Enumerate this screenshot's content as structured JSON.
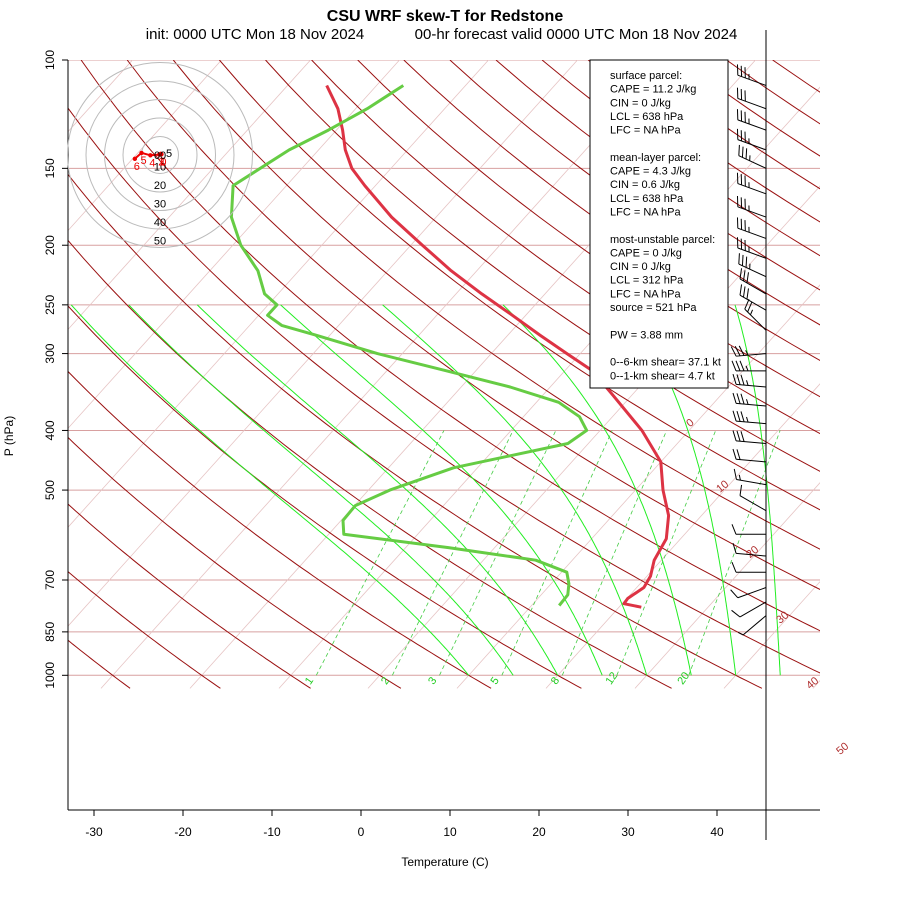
{
  "title": "CSU WRF skew-T for Redstone",
  "subtitle_init": "init: 0000 UTC Mon 18 Nov 2024",
  "subtitle_valid": "00-hr forecast valid 0000 UTC Mon 18 Nov 2024",
  "chart_data": {
    "type": "line",
    "title": "CSU WRF skew-T for Redstone",
    "xlabel": "Temperature (C)",
    "ylabel": "P (hPa)",
    "xlim": [
      -33,
      47
    ],
    "ylim": [
      1050,
      100
    ],
    "y_scale": "log",
    "x_ticks": [
      -30,
      -20,
      -10,
      0,
      10,
      20,
      30,
      40
    ],
    "x_tick_labels": [
      "-30",
      "-20",
      "-10",
      "0",
      "10",
      "20",
      "30",
      "40"
    ],
    "y_ticks": [
      100,
      150,
      200,
      250,
      300,
      400,
      500,
      700,
      850,
      1000
    ],
    "y_tick_labels": [
      "100",
      "150",
      "200",
      "250",
      "300",
      "400",
      "500",
      "700",
      "850",
      "1000"
    ],
    "isotherm_labels": [
      {
        "t": 0,
        "text": "0"
      },
      {
        "t": 10,
        "text": "10"
      },
      {
        "t": 20,
        "text": "20"
      },
      {
        "t": 30,
        "text": "30"
      },
      {
        "t": 40,
        "text": "40"
      },
      {
        "t": 50,
        "text": "50"
      }
    ],
    "mixing_ratio_labels": [
      "1",
      "2",
      "3",
      "5",
      "8",
      "12",
      "20"
    ],
    "series": [
      {
        "name": "Temperature",
        "color": "#dd3344",
        "p": [
          775,
          765,
          750,
          720,
          690,
          650,
          600,
          550,
          500,
          450,
          400,
          350,
          320,
          300,
          280,
          260,
          240,
          220,
          200,
          180,
          160,
          150,
          140,
          130,
          120,
          110
        ],
        "t": [
          12.5,
          10.2,
          10.1,
          10.8,
          10.4,
          9.2,
          8.4,
          6.3,
          3.1,
          0.0,
          -5.3,
          -12.2,
          -16.9,
          -21.5,
          -26.4,
          -31.5,
          -37.1,
          -42.9,
          -48.7,
          -55.0,
          -61.2,
          -64.4,
          -67.0,
          -69.3,
          -72.0,
          -75.6
        ]
      },
      {
        "name": "Dewpoint",
        "color": "#66cc44",
        "p": [
          770,
          740,
          710,
          680,
          650,
          620,
          590,
          560,
          530,
          500,
          460,
          420,
          400,
          380,
          360,
          340,
          320,
          300,
          280,
          270,
          260,
          250,
          240,
          220,
          200,
          180,
          160,
          140,
          130,
          120,
          110
        ],
        "t": [
          3.1,
          3.0,
          2.0,
          0.6,
          -4.1,
          -15.2,
          -28.3,
          -29.8,
          -29.9,
          -27.6,
          -22.7,
          -12.3,
          -11.5,
          -13.7,
          -17.5,
          -24.5,
          -33.3,
          -42.8,
          -51.6,
          -56.4,
          -59.0,
          -59.0,
          -61.5,
          -64.6,
          -69.1,
          -73.0,
          -76.0,
          -73.3,
          -70.9,
          -68.7,
          -67.0
        ]
      }
    ],
    "wind_barbs": [
      {
        "p": 110,
        "spd": 35,
        "dir": 290
      },
      {
        "p": 120,
        "spd": 30,
        "dir": 290
      },
      {
        "p": 130,
        "spd": 35,
        "dir": 290
      },
      {
        "p": 140,
        "spd": 35,
        "dir": 290
      },
      {
        "p": 150,
        "spd": 35,
        "dir": 295
      },
      {
        "p": 165,
        "spd": 35,
        "dir": 290
      },
      {
        "p": 180,
        "spd": 35,
        "dir": 290
      },
      {
        "p": 195,
        "spd": 35,
        "dir": 290
      },
      {
        "p": 210,
        "spd": 35,
        "dir": 290
      },
      {
        "p": 225,
        "spd": 35,
        "dir": 295
      },
      {
        "p": 240,
        "spd": 30,
        "dir": 300
      },
      {
        "p": 255,
        "spd": 30,
        "dir": 300
      },
      {
        "p": 275,
        "spd": 25,
        "dir": 315
      },
      {
        "p": 300,
        "spd": 35,
        "dir": 265
      },
      {
        "p": 320,
        "spd": 35,
        "dir": 270
      },
      {
        "p": 340,
        "spd": 35,
        "dir": 275
      },
      {
        "p": 365,
        "spd": 35,
        "dir": 275
      },
      {
        "p": 390,
        "spd": 35,
        "dir": 275
      },
      {
        "p": 420,
        "spd": 30,
        "dir": 275
      },
      {
        "p": 450,
        "spd": 20,
        "dir": 275
      },
      {
        "p": 490,
        "spd": 15,
        "dir": 280
      },
      {
        "p": 540,
        "spd": 10,
        "dir": 300
      },
      {
        "p": 590,
        "spd": 10,
        "dir": 270
      },
      {
        "p": 640,
        "spd": 10,
        "dir": 275
      },
      {
        "p": 680,
        "spd": 10,
        "dir": 270
      },
      {
        "p": 720,
        "spd": 10,
        "dir": 250
      },
      {
        "p": 760,
        "spd": 10,
        "dir": 240
      },
      {
        "p": 800,
        "spd": 5,
        "dir": 230
      }
    ],
    "hodograph": {
      "rings": [
        10,
        20,
        30,
        40,
        50
      ],
      "ring_labels": [
        "10",
        "20",
        "30",
        "40",
        "50"
      ],
      "points": [
        {
          "u": 1.0,
          "v": 0.5
        },
        {
          "u": 0.6,
          "v": 0.8
        },
        {
          "u": -0.5,
          "v": 0.3
        },
        {
          "u": -6.5,
          "v": -0.2
        },
        {
          "u": -12.5,
          "v": 1.4
        },
        {
          "u": -17.0,
          "v": -2.6
        }
      ],
      "point_labels": [
        "0",
        "1",
        "2",
        "4",
        "5",
        "6"
      ],
      "origin_labels": [
        "0",
        "0",
        "5"
      ]
    }
  },
  "info_box": {
    "lines": [
      "surface parcel:",
      "CAPE = 11.2 J/kg",
      "CIN = 0 J/kg",
      "LCL = 638 hPa",
      "LFC = NA hPa",
      "",
      "mean-layer parcel:",
      "CAPE = 4.3 J/kg",
      "CIN = 0.6 J/kg",
      "LCL = 638 hPa",
      "LFC = NA hPa",
      "",
      "most-unstable parcel:",
      "CAPE = 0 J/kg",
      "CIN = 0 J/kg",
      "LCL = 312 hPa",
      "LFC = NA hPa",
      "source = 521 hPa",
      "",
      "PW =  3.88 mm",
      "",
      "0--6-km shear= 37.1 kt",
      "0--1-km shear= 4.7 kt"
    ]
  },
  "colors": {
    "isotherm": "#b03030",
    "dry_adiabat": "#9a1010",
    "moist_adiabat": "#22ee22",
    "mixing_ratio": "#44cc44",
    "isobar": "#d8a0a0",
    "temperature": "#dd3344",
    "dewpoint": "#66cc44",
    "hodograph_trace": "#ee0000"
  }
}
